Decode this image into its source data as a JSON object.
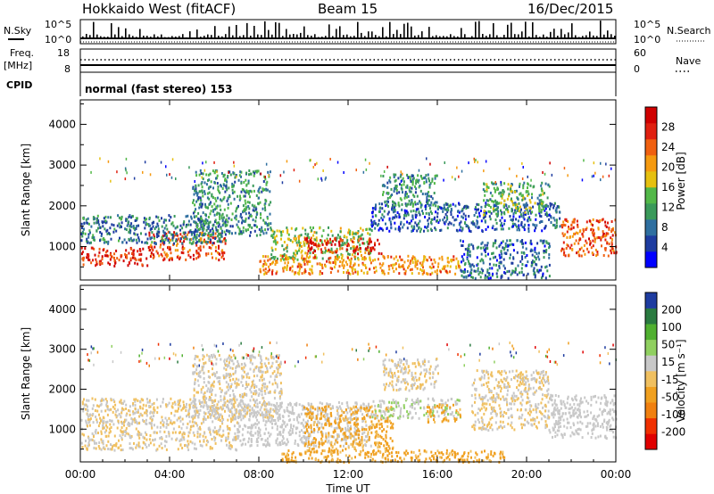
{
  "header": {
    "title": "Hokkaido West (fitACF)",
    "beam": "Beam 15",
    "date": "16/Dec/2015"
  },
  "top_panels": {
    "nsky_label": "N.Sky",
    "nsky_ticks": [
      "10^5",
      "10^0"
    ],
    "nsearch_label": "N.Search",
    "nsearch_ticks": [
      "10^5",
      "10^0"
    ],
    "freq_label_1": "Freq.",
    "freq_label_2": "[MHz]",
    "freq_ticks": [
      "18",
      "8"
    ],
    "nave_label": "Nave",
    "nave_ticks": [
      "60",
      "0"
    ],
    "cpid_label": "CPID",
    "cpid_text": "normal (fast stereo) 153"
  },
  "time_axis": {
    "label": "Time UT",
    "ticks": [
      "00:00",
      "04:00",
      "08:00",
      "12:00",
      "16:00",
      "20:00",
      "00:00"
    ]
  },
  "chart_data": [
    {
      "type": "heatmap",
      "name": "power",
      "ylabel": "Slant Range [km]",
      "yticks": [
        "1000",
        "2000",
        "3000",
        "4000"
      ],
      "ylim": [
        180,
        4600
      ],
      "xlim_hours": [
        0,
        24
      ],
      "colorbar_label": "Power [dB]",
      "colorbar_ticks": [
        "4",
        "8",
        "12",
        "16",
        "20",
        "24",
        "28"
      ],
      "colorbar_range": [
        0,
        30
      ],
      "colors": [
        "#0000ff",
        "#1e3ca0",
        "#2f6fa0",
        "#3a9a5a",
        "#52b848",
        "#e6c010",
        "#f59a10",
        "#f06010",
        "#e02010",
        "#d00000"
      ],
      "regions": [
        {
          "t": [
            0,
            3
          ],
          "r": [
            550,
            1000
          ],
          "level": 26
        },
        {
          "t": [
            3,
            6.5
          ],
          "r": [
            700,
            1400
          ],
          "level": 24
        },
        {
          "t": [
            0,
            6.5
          ],
          "r": [
            1100,
            1800
          ],
          "level": 8
        },
        {
          "t": [
            5,
            8.5
          ],
          "r": [
            1300,
            2900
          ],
          "level": 10
        },
        {
          "t": [
            8.5,
            13
          ],
          "r": [
            700,
            1500
          ],
          "level": 14
        },
        {
          "t": [
            10,
            13.5
          ],
          "r": [
            850,
            1250
          ],
          "level": 27
        },
        {
          "t": [
            8,
            17
          ],
          "r": [
            350,
            800
          ],
          "level": 20
        },
        {
          "t": [
            13,
            21.5
          ],
          "r": [
            1400,
            2100
          ],
          "level": 6
        },
        {
          "t": [
            13.5,
            16
          ],
          "r": [
            2000,
            2800
          ],
          "level": 10
        },
        {
          "t": [
            18,
            21
          ],
          "r": [
            1800,
            2600
          ],
          "level": 12
        },
        {
          "t": [
            21.5,
            24
          ],
          "r": [
            800,
            1700
          ],
          "level": 23
        },
        {
          "t": [
            17,
            21
          ],
          "r": [
            250,
            1200
          ],
          "level": 7
        }
      ]
    },
    {
      "type": "heatmap",
      "name": "velocity",
      "ylabel": "Slant Range [km]",
      "yticks": [
        "1000",
        "2000",
        "3000",
        "4000"
      ],
      "ylim": [
        180,
        4600
      ],
      "xlim_hours": [
        0,
        24
      ],
      "colorbar_label": "Velocity [m s⁻¹]",
      "colorbar_ticks": [
        "-200",
        "-100",
        "-50",
        "-15",
        "15",
        "50",
        "100",
        "200"
      ],
      "colorbar_range": [
        -250,
        250
      ],
      "colors": [
        "#e00000",
        "#f03000",
        "#f08010",
        "#f0a020",
        "#f0c060",
        "#c8c8c8",
        "#90d060",
        "#50b030",
        "#2a7a40",
        "#1e3ca0"
      ],
      "regions": [
        {
          "t": [
            0,
            7
          ],
          "r": [
            500,
            1800
          ],
          "vel": 0
        },
        {
          "t": [
            5,
            9
          ],
          "r": [
            1300,
            2900
          ],
          "vel": 5
        },
        {
          "t": [
            7,
            13
          ],
          "r": [
            600,
            1700
          ],
          "vel": 30
        },
        {
          "t": [
            10,
            14
          ],
          "r": [
            450,
            1600
          ],
          "vel": -60
        },
        {
          "t": [
            13,
            17
          ],
          "r": [
            1300,
            1800
          ],
          "vel": 40
        },
        {
          "t": [
            15.5,
            17
          ],
          "r": [
            1200,
            1650
          ],
          "vel": -60
        },
        {
          "t": [
            13.5,
            16
          ],
          "r": [
            2000,
            2800
          ],
          "vel": 0
        },
        {
          "t": [
            17.5,
            21
          ],
          "r": [
            1000,
            2500
          ],
          "vel": 0
        },
        {
          "t": [
            21,
            24
          ],
          "r": [
            800,
            1900
          ],
          "vel": 25
        },
        {
          "t": [
            9,
            19
          ],
          "r": [
            200,
            500
          ],
          "vel": -60
        }
      ]
    }
  ]
}
